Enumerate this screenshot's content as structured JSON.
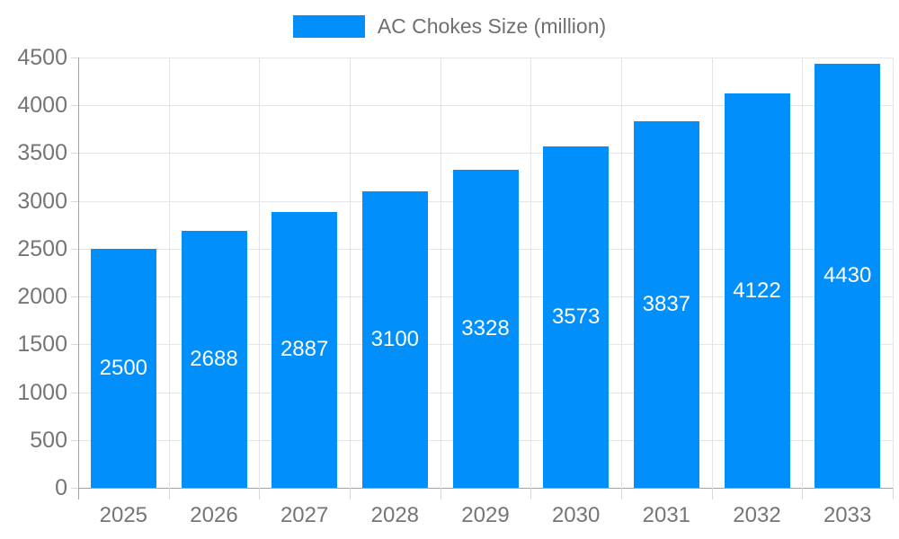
{
  "chart_data": {
    "type": "bar",
    "title": "",
    "legend": {
      "label": "AC Chokes Size (million)",
      "position": "top"
    },
    "categories": [
      "2025",
      "2026",
      "2027",
      "2028",
      "2029",
      "2030",
      "2031",
      "2032",
      "2033"
    ],
    "series": [
      {
        "name": "AC Chokes Size (million)",
        "values": [
          2500,
          2688,
          2887,
          3100,
          3328,
          3573,
          3837,
          4122,
          4430
        ]
      }
    ],
    "value_labels": [
      "2500",
      "2688",
      "2887",
      "3100",
      "3328",
      "3573",
      "3837",
      "4122",
      "4430"
    ],
    "xlabel": "",
    "ylabel": "",
    "ylim": [
      0,
      4500
    ],
    "y_ticks": [
      0,
      500,
      1000,
      1500,
      2000,
      2500,
      3000,
      3500,
      4000,
      4500
    ],
    "grid": "horizontal and vertical gridlines on"
  },
  "colors": {
    "bar": "#008FFB",
    "grid": "#e5e5e5",
    "axis_line": "#a3a3a3",
    "tick": "#d9d9d9",
    "axis_label_text": "#757575",
    "legend_text": "#6f6f6f",
    "value_label_text": "#ffffff",
    "background": "#ffffff"
  }
}
